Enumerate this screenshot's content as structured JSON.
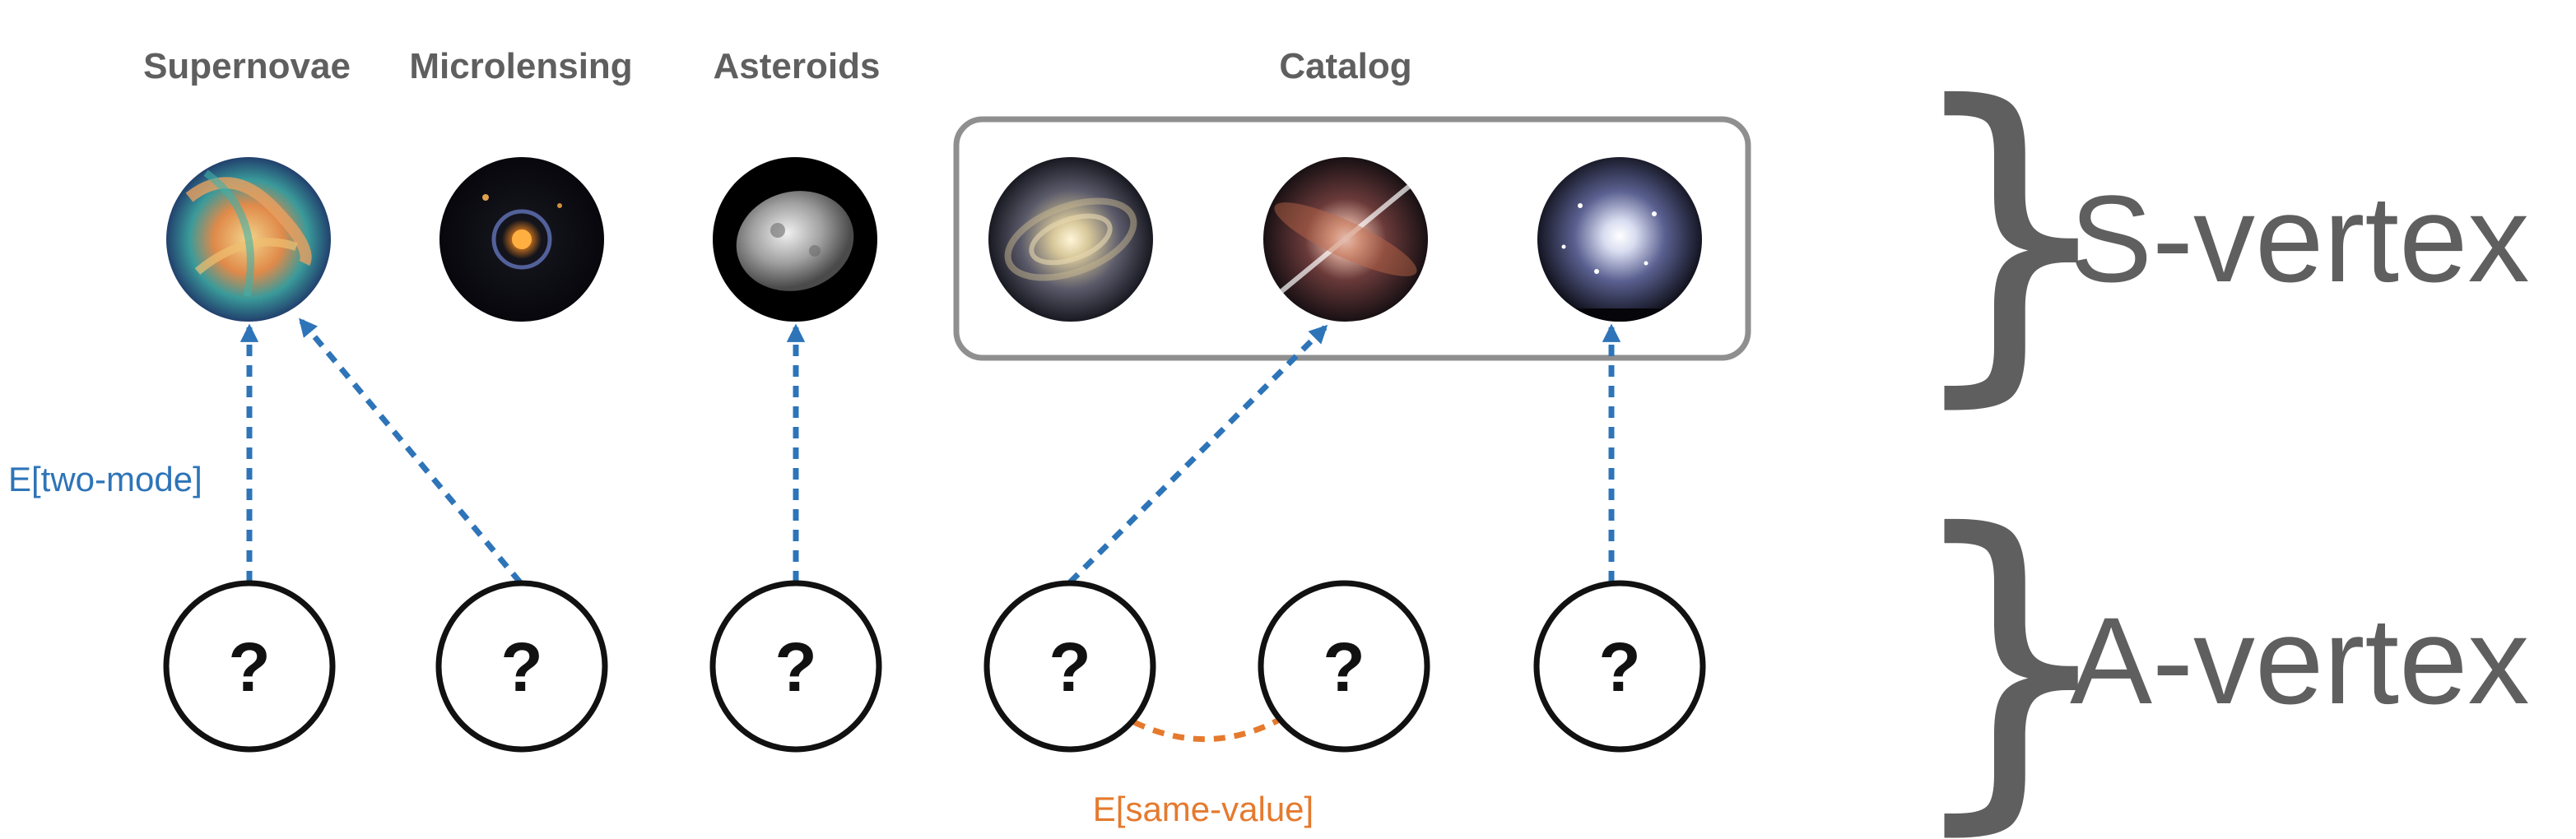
{
  "categories": {
    "supernovae": "Supernovae",
    "microlensing": "Microlensing",
    "asteroids": "Asteroids",
    "catalog": "Catalog"
  },
  "s_vertex_images": [
    {
      "id": "crab-nebula",
      "colors": [
        "#e9a45a",
        "#3aa0a0",
        "#1a2a4a"
      ]
    },
    {
      "id": "einstein-ring",
      "colors": [
        "#f0a030",
        "#3a4a8a",
        "#05050a"
      ]
    },
    {
      "id": "asteroid",
      "colors": [
        "#d8d8d8",
        "#7a7a7a",
        "#000000"
      ]
    },
    {
      "id": "spiral-galaxy",
      "colors": [
        "#f4e6c0",
        "#6a6a78",
        "#0a0a14"
      ]
    },
    {
      "id": "galaxy-jet",
      "colors": [
        "#ffffff",
        "#c05a3a",
        "#08080c"
      ]
    },
    {
      "id": "globular-cluster",
      "colors": [
        "#ffffff",
        "#8a96c8",
        "#05050a"
      ]
    }
  ],
  "a_vertex_symbol": "?",
  "edge_labels": {
    "two_mode": "E[two-mode]",
    "same_value": "E[same-value]"
  },
  "levels": {
    "s_vertex": "S-vertex",
    "a_vertex": "A-vertex",
    "brace_glyph": "}"
  },
  "colors": {
    "two_mode_edge": "#2e74b8",
    "same_value_edge": "#e57a2e",
    "catalog_box": "#8f8f8f",
    "label_gray": "#5f5f5f"
  }
}
